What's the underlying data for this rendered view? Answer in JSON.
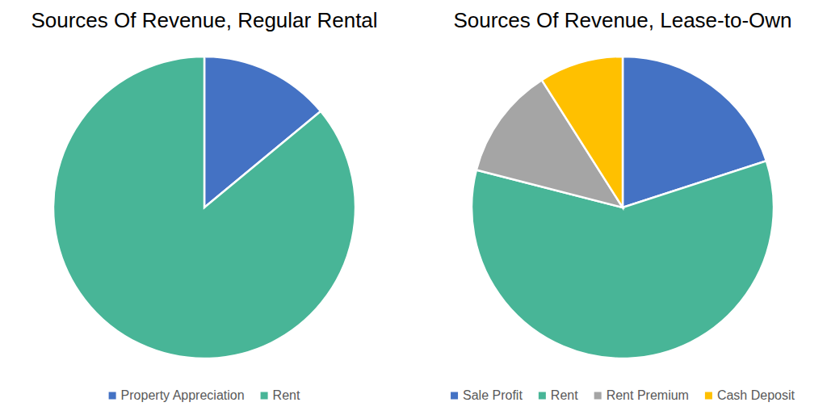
{
  "chart_data": [
    {
      "type": "pie",
      "title": "Sources Of Revenue, Regular Rental",
      "categories": [
        "Property Appreciation",
        "Rent"
      ],
      "values": [
        14,
        86
      ],
      "colors": [
        "#4472c4",
        "#48b597"
      ],
      "legend": "bottom"
    },
    {
      "type": "pie",
      "title": "Sources Of Revenue, Lease-to-Own",
      "categories": [
        "Sale Profit",
        "Rent",
        "Rent Premium",
        "Cash Deposit"
      ],
      "values": [
        20,
        59,
        12,
        9
      ],
      "colors": [
        "#4472c4",
        "#48b597",
        "#a5a5a5",
        "#ffc000"
      ],
      "legend": "bottom"
    }
  ]
}
